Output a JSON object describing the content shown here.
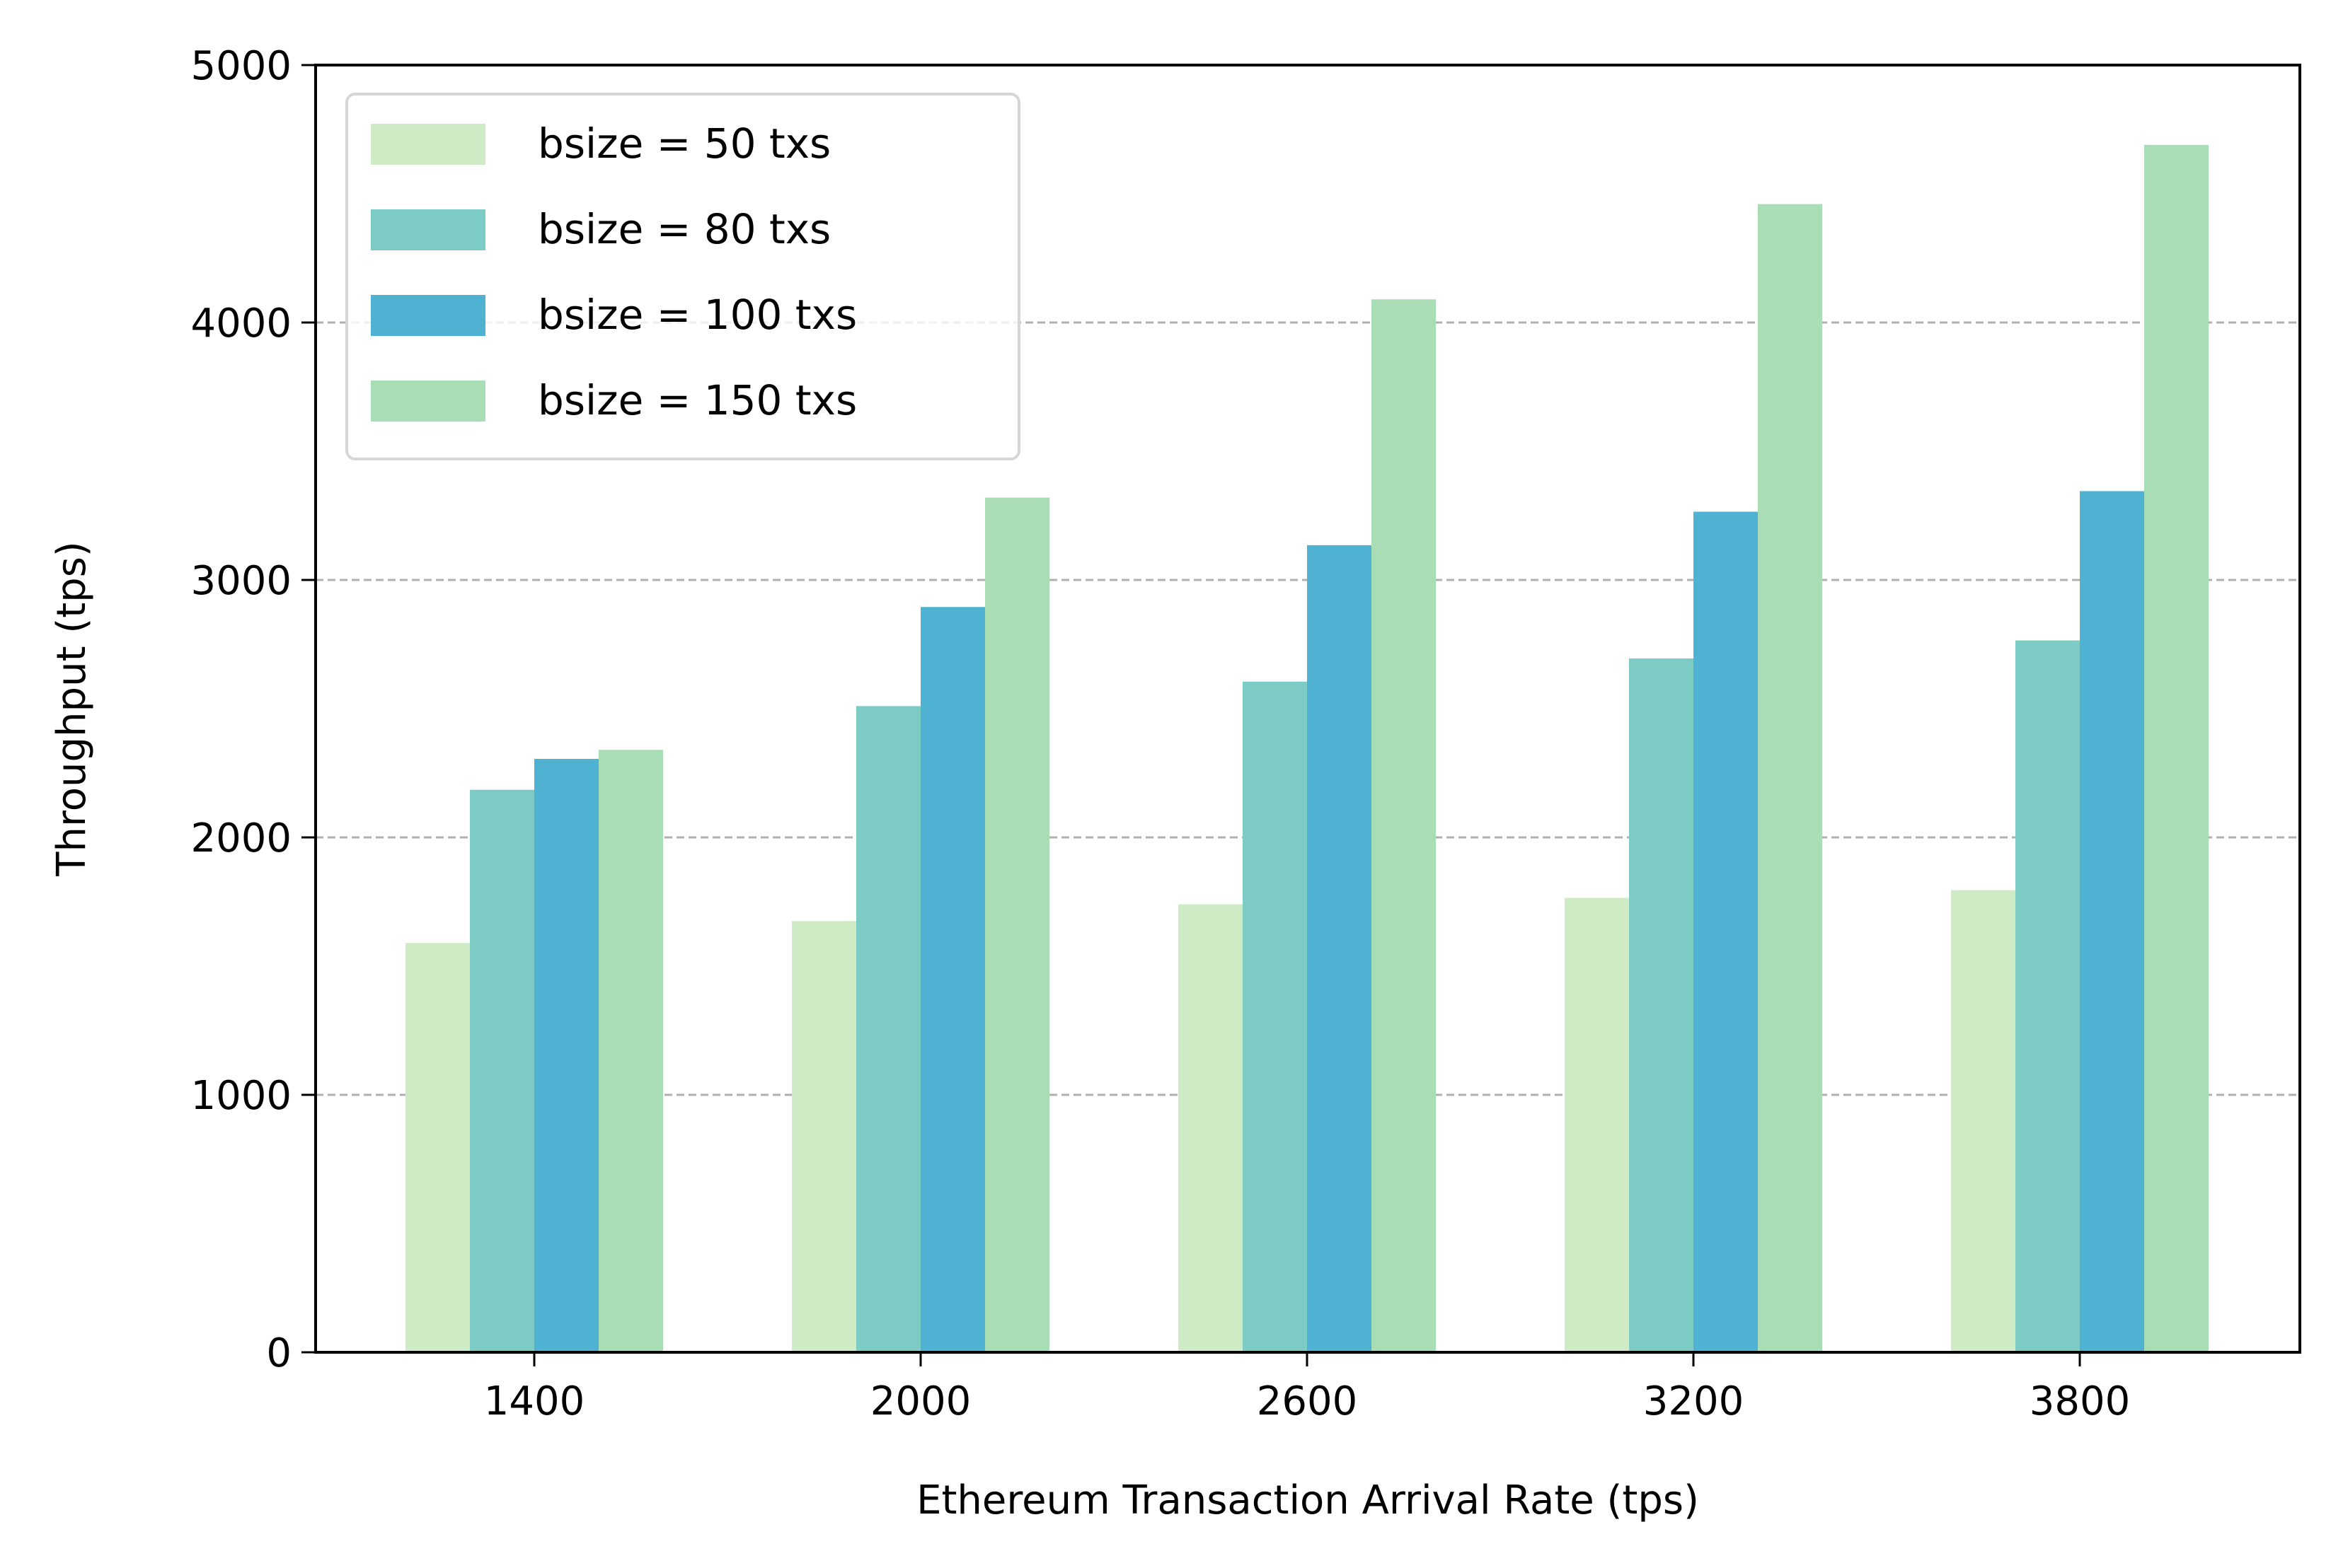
{
  "chart_data": {
    "type": "bar",
    "title": "",
    "xlabel": "Ethereum Transaction Arrival Rate (tps)",
    "ylabel": "Throughput (tps)",
    "ylim": [
      0,
      5000
    ],
    "yticks": [
      0,
      1000,
      2000,
      3000,
      4000,
      5000
    ],
    "categories": [
      "1400",
      "2000",
      "2600",
      "3200",
      "3800"
    ],
    "grid": "y-dashed",
    "legend_position": "top-left",
    "series": [
      {
        "name": "bsize = 50 txs",
        "color": "#ceebc6",
        "values": [
          1590,
          1675,
          1740,
          1765,
          1795
        ]
      },
      {
        "name": "bsize = 80 txs",
        "color": "#7ccbc4",
        "values": [
          2185,
          2510,
          2605,
          2695,
          2765
        ]
      },
      {
        "name": "bsize = 100 txs",
        "color": "#4fb2d3",
        "values": [
          2305,
          2895,
          3135,
          3265,
          3345
        ]
      },
      {
        "name": "bsize = 150 txs",
        "color": "#a9ddb5",
        "values": [
          2340,
          3320,
          4090,
          4460,
          4690
        ]
      }
    ]
  }
}
